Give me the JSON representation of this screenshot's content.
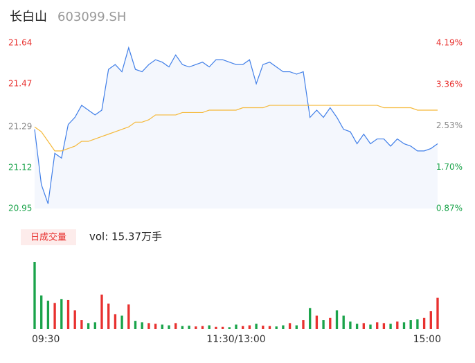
{
  "header": {
    "name": "长白山",
    "code": "603099.SH"
  },
  "chart_data": [
    {
      "type": "line",
      "x": [
        0,
        4,
        8,
        12,
        16,
        20,
        24,
        28,
        32,
        36,
        40,
        44,
        48,
        52,
        56,
        60,
        64,
        68,
        72,
        76,
        80,
        84,
        88,
        92,
        96,
        100,
        104,
        108,
        112,
        116,
        120,
        124,
        128,
        132,
        136,
        140,
        144,
        148,
        152,
        156,
        160,
        164,
        168,
        172,
        176,
        180,
        184,
        188,
        192,
        196,
        200,
        204,
        208,
        212,
        216,
        220,
        224,
        228,
        232,
        236,
        240
      ],
      "series": [
        {
          "color": "#3f7ee8",
          "values": [
            21.28,
            21.05,
            20.97,
            21.18,
            21.16,
            21.3,
            21.33,
            21.38,
            21.36,
            21.34,
            21.36,
            21.53,
            21.55,
            21.52,
            21.62,
            21.53,
            21.52,
            21.55,
            21.57,
            21.56,
            21.54,
            21.59,
            21.55,
            21.54,
            21.55,
            21.56,
            21.54,
            21.57,
            21.57,
            21.56,
            21.55,
            21.55,
            21.57,
            21.47,
            21.55,
            21.56,
            21.54,
            21.52,
            21.52,
            21.51,
            21.52,
            21.33,
            21.36,
            21.33,
            21.37,
            21.33,
            21.28,
            21.27,
            21.22,
            21.26,
            21.22,
            21.24,
            21.24,
            21.21,
            21.24,
            21.22,
            21.21,
            21.19,
            21.19,
            21.2,
            21.22
          ]
        },
        {
          "color": "#f5b93a",
          "values": [
            21.29,
            21.27,
            21.23,
            21.19,
            21.19,
            21.2,
            21.21,
            21.23,
            21.23,
            21.24,
            21.25,
            21.26,
            21.27,
            21.28,
            21.29,
            21.31,
            21.31,
            21.32,
            21.34,
            21.34,
            21.34,
            21.34,
            21.35,
            21.35,
            21.35,
            21.35,
            21.36,
            21.36,
            21.36,
            21.36,
            21.36,
            21.37,
            21.37,
            21.37,
            21.37,
            21.38,
            21.38,
            21.38,
            21.38,
            21.38,
            21.38,
            21.38,
            21.38,
            21.38,
            21.38,
            21.38,
            21.38,
            21.38,
            21.38,
            21.38,
            21.38,
            21.38,
            21.37,
            21.37,
            21.37,
            21.37,
            21.37,
            21.36,
            21.36,
            21.36,
            21.36
          ]
        }
      ],
      "xlim": [
        0,
        240
      ],
      "xticks": [
        {
          "value": 0,
          "label": "09:30"
        },
        {
          "value": 120,
          "label": "11:30/13:00"
        },
        {
          "value": 240,
          "label": "15:00"
        }
      ],
      "ylim": [
        20.95,
        21.64
      ],
      "yticks": [
        20.95,
        21.12,
        21.29,
        21.47,
        21.64
      ],
      "y2lim": [
        0.87,
        4.19
      ],
      "y2ticks": [
        {
          "value": 0.87,
          "label": "0.87%"
        },
        {
          "value": 1.7,
          "label": "1.70%"
        },
        {
          "value": 2.53,
          "label": "2.53%"
        },
        {
          "value": 3.36,
          "label": "3.36%"
        },
        {
          "value": 4.19,
          "label": "4.19%"
        }
      ],
      "up_color": "#e8312f",
      "down_color": "#1aa34a",
      "flat_color": "#888888",
      "area_color": "#f4f7fd"
    },
    {
      "type": "bar",
      "title": "日成交量",
      "label": "vol: 15.37万手",
      "values": [
        9000,
        4500,
        3800,
        3500,
        4000,
        3900,
        2500,
        1200,
        800,
        900,
        4600,
        3400,
        2000,
        1800,
        3300,
        1100,
        900,
        800,
        700,
        600,
        500,
        800,
        400,
        450,
        350,
        400,
        500,
        300,
        300,
        250,
        600,
        400,
        500,
        700,
        450,
        400,
        350,
        500,
        800,
        500,
        1200,
        2800,
        1800,
        1200,
        1500,
        2500,
        1800,
        1000,
        700,
        800,
        600,
        900,
        800,
        700,
        1000,
        900,
        1200,
        1300,
        1500,
        2400,
        4200
      ]
    }
  ]
}
